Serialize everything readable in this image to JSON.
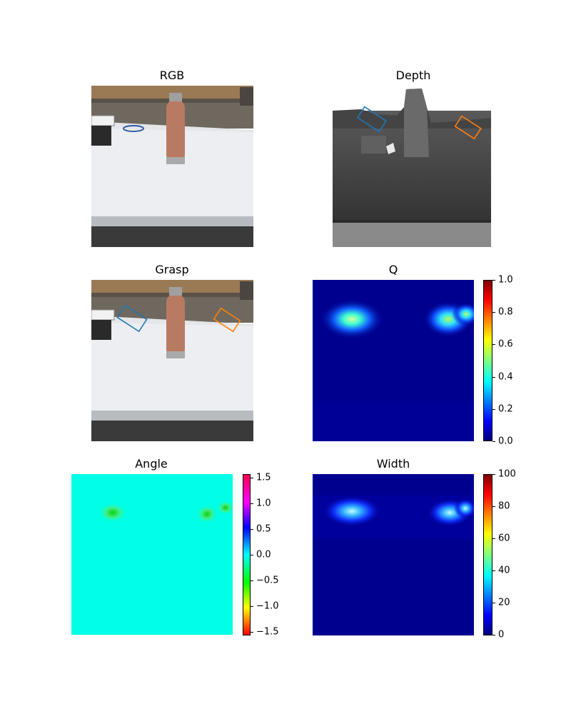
{
  "panels": {
    "rgb": {
      "title": "RGB"
    },
    "depth": {
      "title": "Depth"
    },
    "grasp": {
      "title": "Grasp"
    },
    "q": {
      "title": "Q"
    },
    "angle": {
      "title": "Angle"
    },
    "width": {
      "title": "Width"
    }
  },
  "colors": {
    "grasp_1": "#1f77b4",
    "grasp_2": "#ff7f0e"
  },
  "chart_data": [
    {
      "type": "heatmap",
      "title": "RGB"
    },
    {
      "type": "heatmap",
      "title": "Depth"
    },
    {
      "type": "heatmap",
      "title": "Grasp"
    },
    {
      "type": "heatmap",
      "title": "Q",
      "colormap": "jet",
      "clim": [
        0,
        1
      ],
      "colorbar_ticks": [
        "0.0",
        "0.2",
        "0.4",
        "0.6",
        "0.8",
        "1.0"
      ]
    },
    {
      "type": "heatmap",
      "title": "Angle",
      "colormap": "hsv",
      "clim": [
        -1.5708,
        1.5708
      ],
      "colorbar_ticks": [
        "−1.5",
        "−1.0",
        "−0.5",
        "0.0",
        "0.5",
        "1.0",
        "1.5"
      ]
    },
    {
      "type": "heatmap",
      "title": "Width",
      "colormap": "jet",
      "clim": [
        0,
        100
      ],
      "colorbar_ticks": [
        "0",
        "20",
        "40",
        "60",
        "80",
        "100"
      ]
    }
  ]
}
